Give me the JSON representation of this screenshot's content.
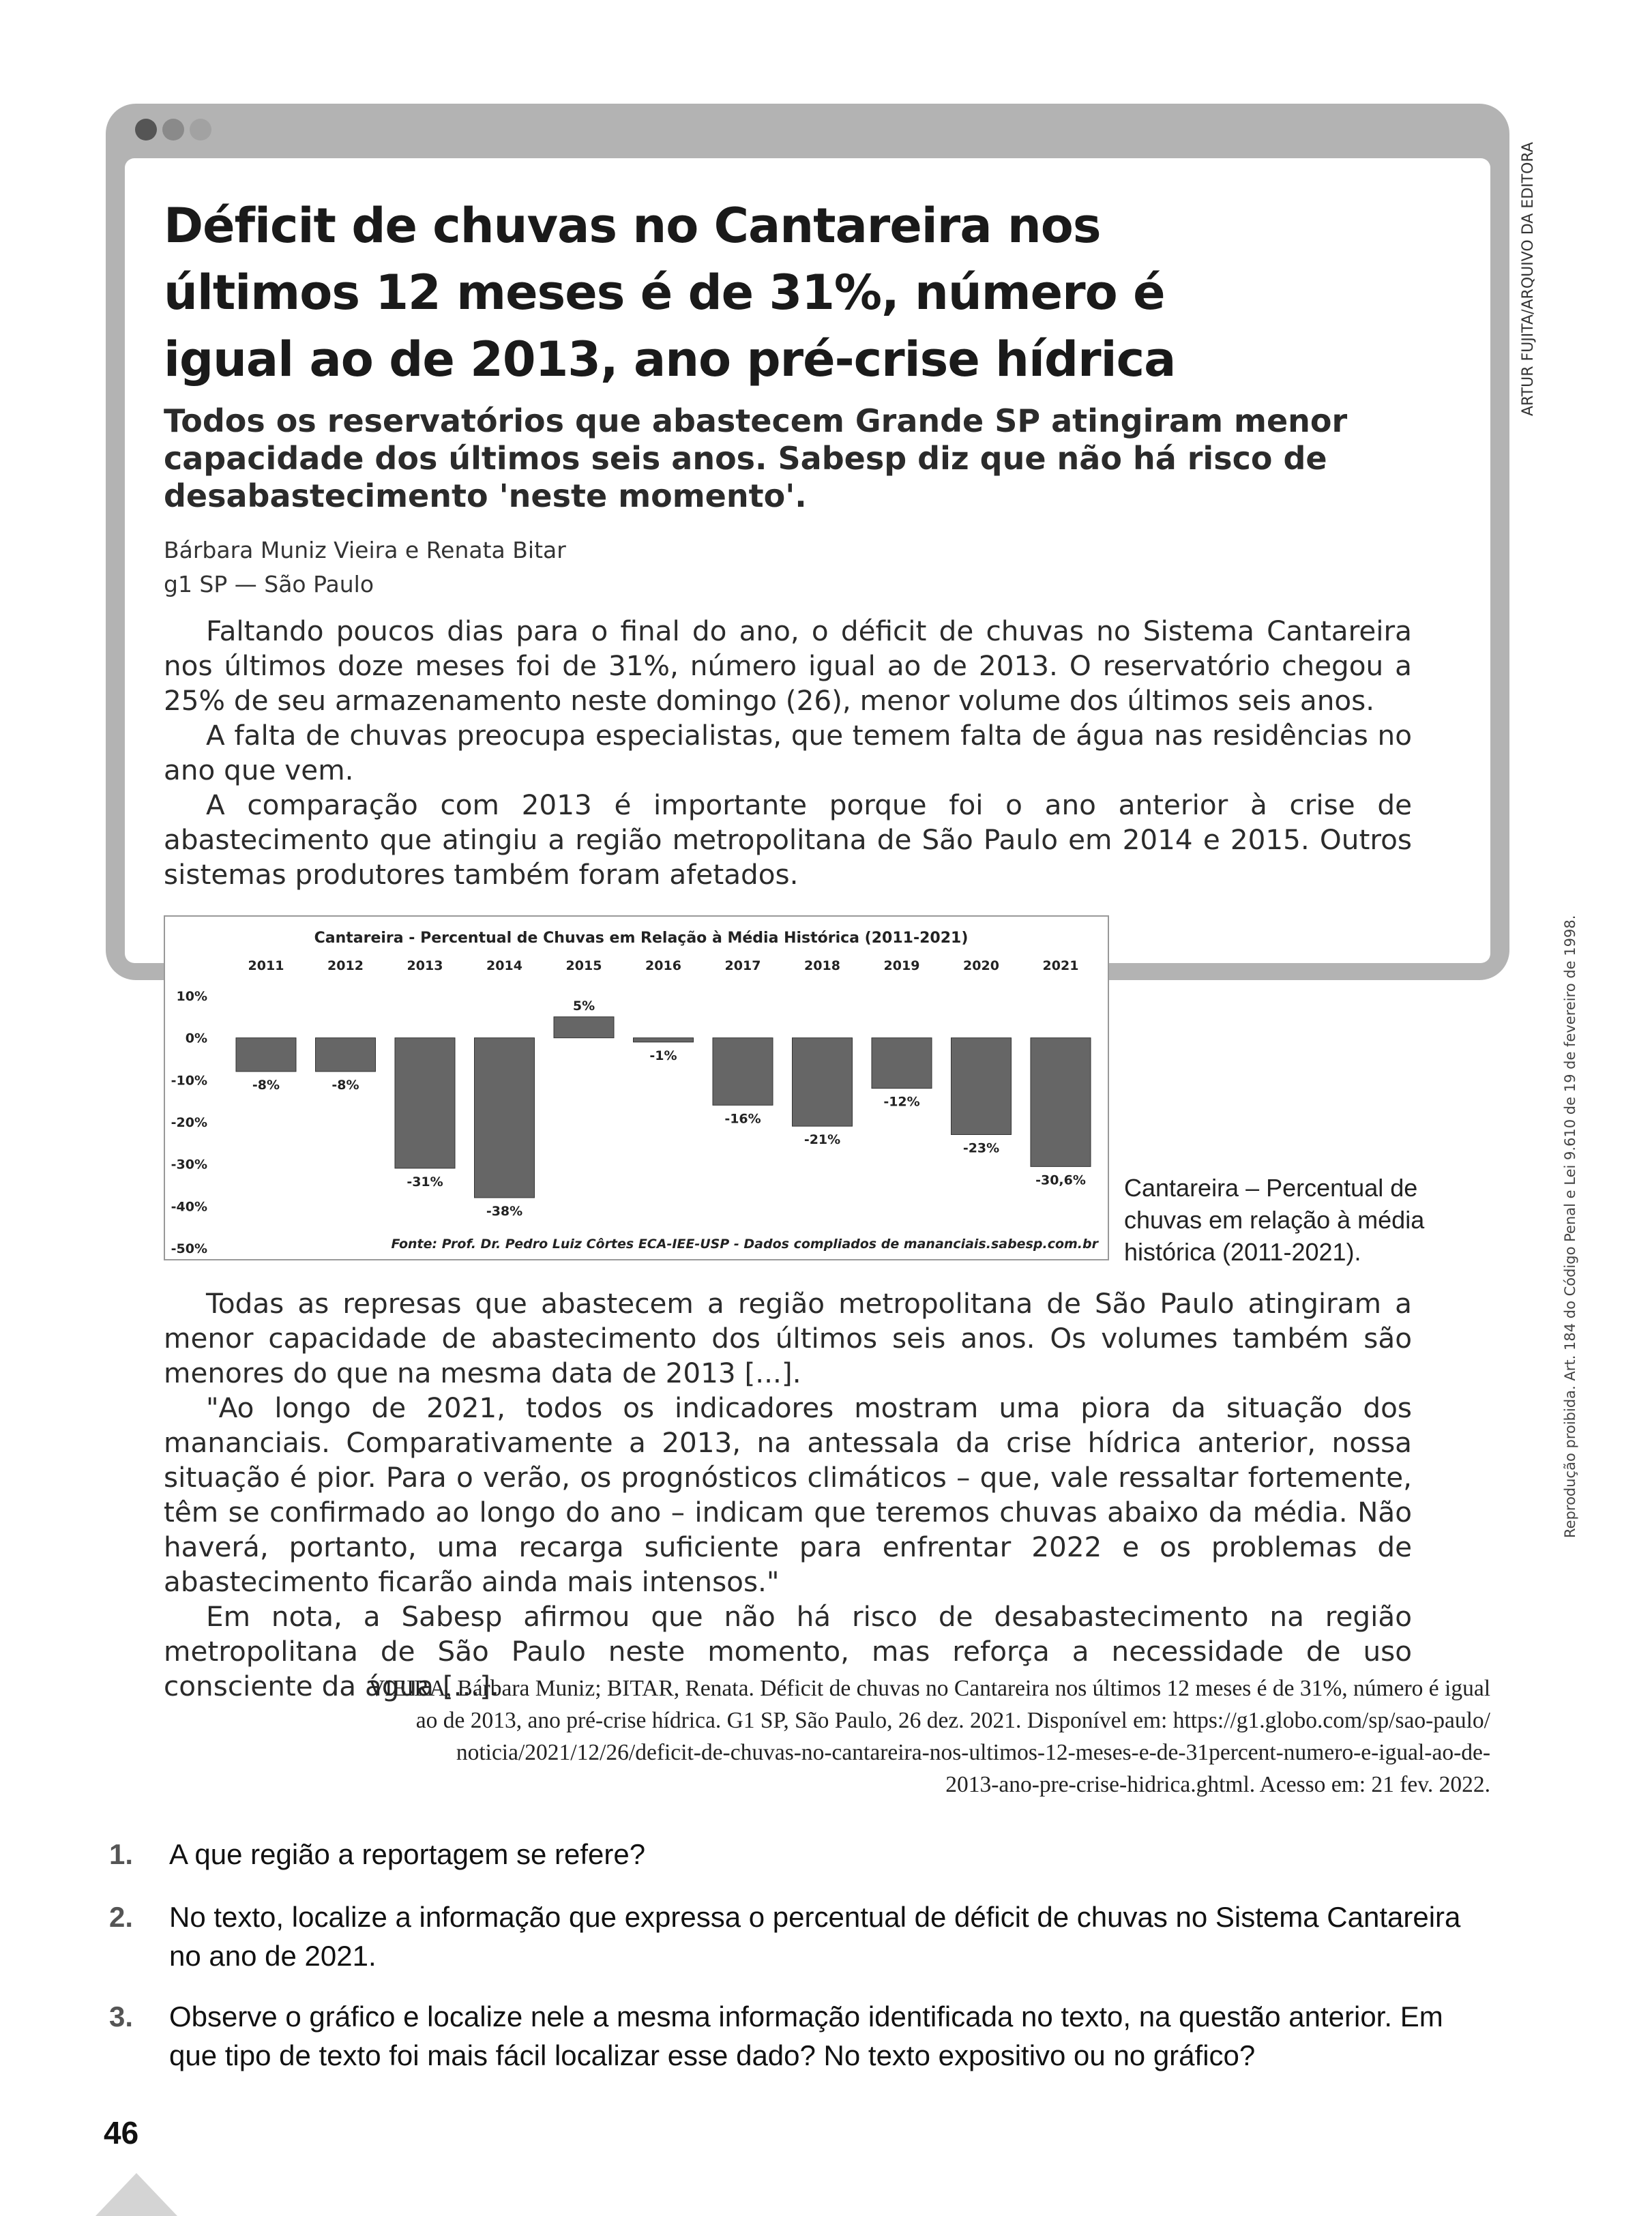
{
  "article": {
    "headline_lines": [
      "Déficit de chuvas no Cantareira nos",
      "últimos 12 meses é de 31%, número é",
      "igual ao de 2013, ano pré-crise hídrica"
    ],
    "subhead_lines": [
      "Todos os reservatórios que abastecem Grande SP atingiram menor",
      "capacidade dos últimos seis anos. Sabesp diz que não há risco de",
      "desabastecimento 'neste momento'."
    ],
    "authors": "Bárbara Muniz Vieira e Renata Bitar",
    "outlet": "g1 SP — São Paulo",
    "paragraphs_top": [
      "Faltando poucos dias para o final do ano, o déficit de chuvas no Sistema Cantareira nos últimos doze meses foi de 31%, número igual ao de 2013. O reservatório chegou a 25% de seu armazenamento neste domingo (26), menor volume dos últimos seis anos.",
      "A falta de chuvas preocupa especialistas, que temem falta de água nas residências no ano que vem.",
      "A comparação com 2013 é importante porque foi o ano anterior à crise de abastecimento que atingiu a região metropolitana de São Paulo em 2014 e 2015. Outros sistemas produtores também foram afetados."
    ],
    "paragraphs_bottom": [
      "Todas as represas que abastecem a região metropolitana de São Paulo atingiram a menor capacidade de abastecimento dos últimos seis anos. Os volumes também são menores do que na mesma data de 2013 [...].",
      "\"Ao longo de 2021, todos os indicadores mostram uma piora da situação dos mananciais. Comparativamente a 2013, na antessala da crise hídrica anterior, nossa situação é pior. Para o verão, os prognósticos climáticos – que, vale ressaltar fortemente, têm se confirmado ao longo do ano – indicam que teremos chuvas abaixo da média. Não haverá, portanto, uma recarga suficiente para enfrentar 2022 e os problemas de abastecimento ficarão ainda mais intensos.\"",
      "Em nota, a Sabesp afirmou que não há risco de desabastecimento na região metropolitana de São Paulo neste momento, mas reforça a necessidade de uso consciente da água [...]."
    ],
    "chart_caption": "Cantareira – Percentual de chuvas em relação à média histórica (2011-2021)."
  },
  "chart_data": {
    "type": "bar",
    "title": "Cantareira - Percentual de Chuvas em Relação à Média Histórica (2011-2021)",
    "categories": [
      "2011",
      "2012",
      "2013",
      "2014",
      "2015",
      "2016",
      "2017",
      "2018",
      "2019",
      "2020",
      "2021"
    ],
    "values": [
      -8,
      -8,
      -31,
      -38,
      5,
      -1,
      -16,
      -21,
      -12,
      -23,
      -30.6
    ],
    "value_labels": [
      "-8%",
      "-8%",
      "-31%",
      "-38%",
      "5%",
      "-1%",
      "-16%",
      "-21%",
      "-12%",
      "-23%",
      "-30,6%"
    ],
    "yticks": [
      "10%",
      "0%",
      "-10%",
      "-20%",
      "-30%",
      "-40%",
      "-50%"
    ],
    "ylim": [
      -50,
      10
    ],
    "source": "Fonte: Prof. Dr. Pedro Luiz Côrtes ECA-IEE-USP - Dados compliados de mananciais.sabesp.com.br",
    "bar_color": "#666666"
  },
  "credits": {
    "image_credit": "ARTUR FUJITA/ARQUIVO DA EDITORA",
    "legal_notice": "Reprodução proibida. Art. 184 do Código Penal e Lei 9.610 de 19 de fevereiro de 1998."
  },
  "citation_lines": [
    "VIEIRA, Bárbara Muniz; BITAR, Renata. Déficit de chuvas no Cantareira nos últimos 12 meses é de 31%, número é igual",
    "ao de 2013, ano pré-crise hídrica. G1 SP, São Paulo, 26 dez. 2021. Disponível em: https://g1.globo.com/sp/sao-paulo/",
    "noticia/2021/12/26/deficit-de-chuvas-no-cantareira-nos-ultimos-12-meses-e-de-31percent-numero-e-igual-ao-de-",
    "2013-ano-pre-crise-hidrica.ghtml. Acesso em: 21 fev. 2022."
  ],
  "questions": [
    {
      "number": "1.",
      "text": "A que região a reportagem se refere?"
    },
    {
      "number": "2.",
      "text": "No texto, localize a informação que expressa o percentual de déficit de chuvas no Sistema Cantareira no ano de 2021."
    },
    {
      "number": "3.",
      "text": "Observe o gráfico e localize nele a mesma informação identificada no texto, na questão anterior. Em que tipo de texto foi mais fácil localizar esse dado? No texto expositivo ou no gráfico?"
    }
  ],
  "page_number": "46",
  "colors": {
    "frame": "#b3b3b3",
    "dot_dark": "#555555",
    "dot_mid": "#8a8a8a",
    "dot_light": "#a2a2a2"
  }
}
